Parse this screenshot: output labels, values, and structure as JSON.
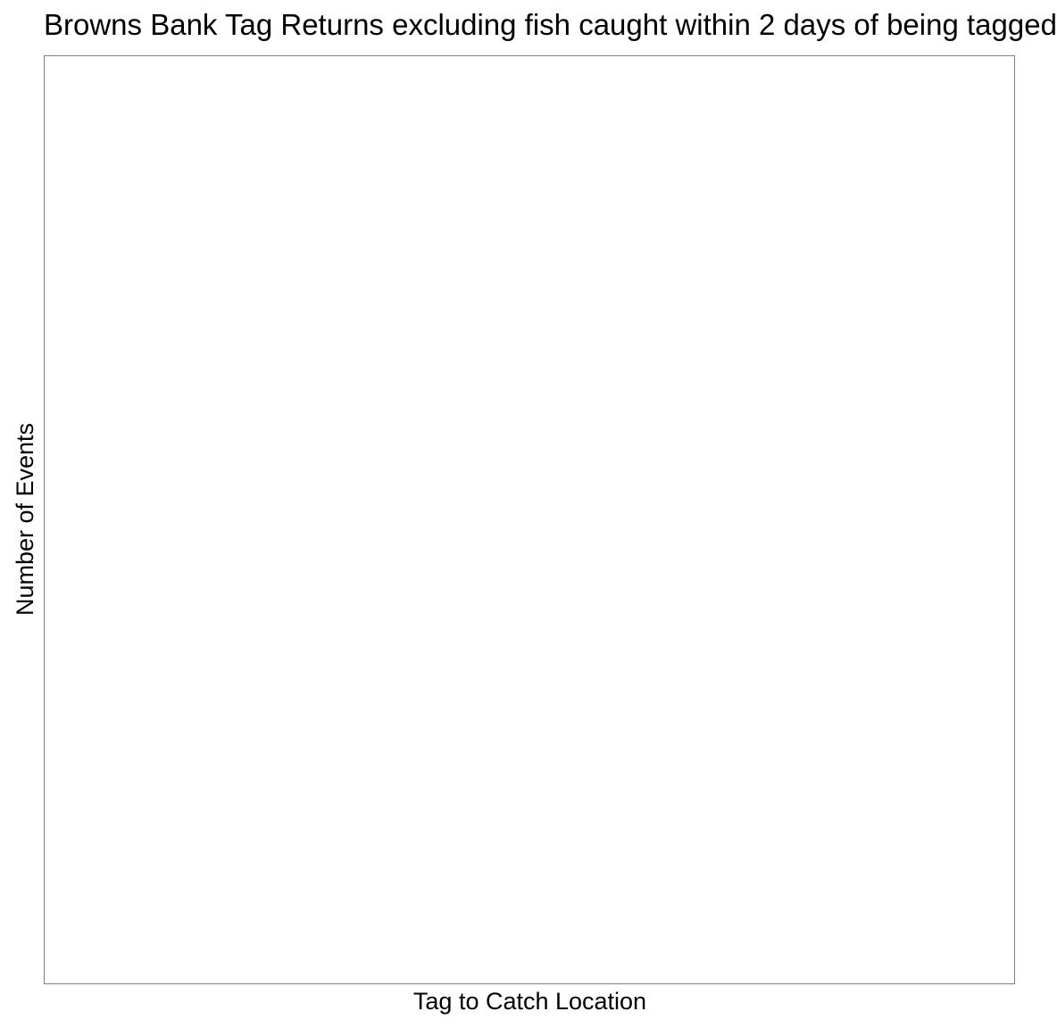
{
  "chart_data": {
    "type": "bar",
    "title": "Browns Bank Tag Returns excluding fish caught within 2 days of being tagged",
    "xlabel": "Tag to Catch Location",
    "ylabel": "Number of Events",
    "categories": [],
    "values": [],
    "grid": false,
    "legend": "none"
  }
}
